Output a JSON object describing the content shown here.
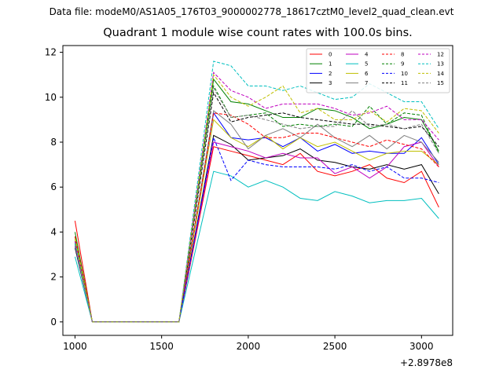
{
  "figure": {
    "suptitle": "Data file: modeM0/AS1A05_176T03_9000002778_18617cztM0_level2_quad_clean.evt"
  },
  "chart_data": {
    "type": "line",
    "title": "Quadrant 1 module wise count rates with 100.0s bins.",
    "xlabel": "",
    "ylabel": "",
    "x_offset_label": "+2.8978e8",
    "xlim": [
      930,
      3180
    ],
    "ylim": [
      -0.6,
      12.3
    ],
    "xticks": [
      1000,
      1500,
      2000,
      2500,
      3000
    ],
    "yticks": [
      0,
      2,
      4,
      6,
      8,
      10,
      12
    ],
    "grid": false,
    "legend": {
      "placement": "top-right",
      "columns": 4
    },
    "x": [
      1000,
      1100,
      1200,
      1300,
      1400,
      1500,
      1600,
      1800,
      1900,
      2000,
      2100,
      2200,
      2300,
      2400,
      2500,
      2600,
      2700,
      2800,
      2900,
      3000,
      3100
    ],
    "series": [
      {
        "name": "0",
        "color": "#ff0000",
        "dash": "solid",
        "values": [
          4.5,
          0,
          0,
          0,
          0,
          0,
          0,
          7.8,
          7.6,
          7.4,
          7.2,
          7.0,
          7.5,
          6.7,
          6.5,
          6.7,
          7.0,
          6.4,
          6.2,
          6.7,
          5.1
        ]
      },
      {
        "name": "1",
        "color": "#008000",
        "dash": "solid",
        "values": [
          4.0,
          0,
          0,
          0,
          0,
          0,
          0,
          10.8,
          9.8,
          9.7,
          9.4,
          9.1,
          9.1,
          9.5,
          9.4,
          9.1,
          8.6,
          8.8,
          9.1,
          9.0,
          7.6
        ]
      },
      {
        "name": "2",
        "color": "#0000ff",
        "dash": "solid",
        "values": [
          3.6,
          0,
          0,
          0,
          0,
          0,
          0,
          9.3,
          8.2,
          8.1,
          8.2,
          7.8,
          8.2,
          7.6,
          7.9,
          7.5,
          7.6,
          7.5,
          7.5,
          8.2,
          7.0
        ]
      },
      {
        "name": "3",
        "color": "#000000",
        "dash": "solid",
        "values": [
          3.3,
          0,
          0,
          0,
          0,
          0,
          0,
          8.3,
          7.9,
          7.2,
          7.3,
          7.4,
          7.7,
          7.2,
          7.1,
          6.9,
          6.8,
          7.0,
          6.8,
          7.0,
          5.7
        ]
      },
      {
        "name": "4",
        "color": "#bf00bf",
        "dash": "solid",
        "values": [
          3.4,
          0,
          0,
          0,
          0,
          0,
          0,
          8.0,
          7.8,
          7.6,
          7.3,
          7.5,
          7.3,
          7.3,
          6.6,
          6.9,
          6.4,
          6.9,
          7.8,
          8.0,
          6.9
        ]
      },
      {
        "name": "5",
        "color": "#00bfbf",
        "dash": "solid",
        "values": [
          2.9,
          0,
          0,
          0,
          0,
          0,
          0,
          6.7,
          6.5,
          6.0,
          6.3,
          6.0,
          5.5,
          5.4,
          5.8,
          5.6,
          5.3,
          5.4,
          5.4,
          5.5,
          4.6
        ]
      },
      {
        "name": "6",
        "color": "#bfbf00",
        "dash": "solid",
        "values": [
          3.8,
          0,
          0,
          0,
          0,
          0,
          0,
          9.0,
          8.2,
          7.8,
          8.3,
          7.7,
          8.2,
          7.8,
          8.0,
          7.6,
          7.2,
          7.5,
          7.6,
          7.6,
          7.0
        ]
      },
      {
        "name": "7",
        "color": "#808080",
        "dash": "solid",
        "values": [
          3.7,
          0,
          0,
          0,
          0,
          0,
          0,
          9.4,
          8.8,
          7.7,
          8.3,
          8.6,
          8.2,
          8.8,
          8.2,
          7.8,
          8.3,
          7.7,
          8.3,
          8.0,
          7.1
        ]
      },
      {
        "name": "8",
        "color": "#ff0000",
        "dash": "dashed",
        "values": [
          3.8,
          0,
          0,
          0,
          0,
          0,
          0,
          9.3,
          9.2,
          8.8,
          8.2,
          8.2,
          8.4,
          8.4,
          8.2,
          8.0,
          7.8,
          8.1,
          7.9,
          7.7,
          6.9
        ]
      },
      {
        "name": "9",
        "color": "#008000",
        "dash": "dashed",
        "values": [
          3.6,
          0,
          0,
          0,
          0,
          0,
          0,
          10.5,
          9.1,
          9.2,
          9.3,
          8.7,
          8.8,
          8.7,
          8.8,
          8.7,
          9.6,
          8.8,
          9.3,
          9.2,
          7.5
        ]
      },
      {
        "name": "10",
        "color": "#0000ff",
        "dash": "dashed",
        "values": [
          3.4,
          0,
          0,
          0,
          0,
          0,
          0,
          8.2,
          6.3,
          7.2,
          7.0,
          6.9,
          6.9,
          6.9,
          6.8,
          7.0,
          6.7,
          6.9,
          6.4,
          6.4,
          6.2
        ]
      },
      {
        "name": "11",
        "color": "#000000",
        "dash": "dashed",
        "values": [
          3.5,
          0,
          0,
          0,
          0,
          0,
          0,
          10.2,
          8.9,
          9.1,
          9.2,
          9.3,
          9.1,
          9.0,
          8.9,
          8.8,
          8.8,
          8.7,
          8.6,
          8.7,
          7.8
        ]
      },
      {
        "name": "12",
        "color": "#bf00bf",
        "dash": "dashed",
        "values": [
          3.6,
          0,
          0,
          0,
          0,
          0,
          0,
          11.1,
          10.3,
          10.0,
          9.5,
          9.7,
          9.7,
          9.7,
          9.5,
          9.2,
          9.3,
          9.6,
          9.0,
          9.0,
          8.1
        ]
      },
      {
        "name": "13",
        "color": "#00bfbf",
        "dash": "dashed",
        "values": [
          3.5,
          0,
          0,
          0,
          0,
          0,
          0,
          11.6,
          11.4,
          10.5,
          10.5,
          10.3,
          10.5,
          10.2,
          9.9,
          10.0,
          10.6,
          10.2,
          9.8,
          9.8,
          8.6
        ]
      },
      {
        "name": "14",
        "color": "#bfbf00",
        "dash": "dashed",
        "values": [
          3.7,
          0,
          0,
          0,
          0,
          0,
          0,
          11.0,
          10.0,
          9.6,
          10.0,
          10.5,
          9.3,
          9.5,
          9.0,
          9.0,
          9.4,
          8.9,
          9.5,
          9.4,
          8.4
        ]
      },
      {
        "name": "15",
        "color": "#808080",
        "dash": "dashed",
        "values": [
          3.4,
          0,
          0,
          0,
          0,
          0,
          0,
          10.4,
          9.1,
          9.2,
          9.0,
          8.8,
          8.6,
          8.7,
          8.7,
          9.4,
          8.7,
          8.8,
          8.6,
          8.8,
          7.5
        ]
      }
    ]
  }
}
